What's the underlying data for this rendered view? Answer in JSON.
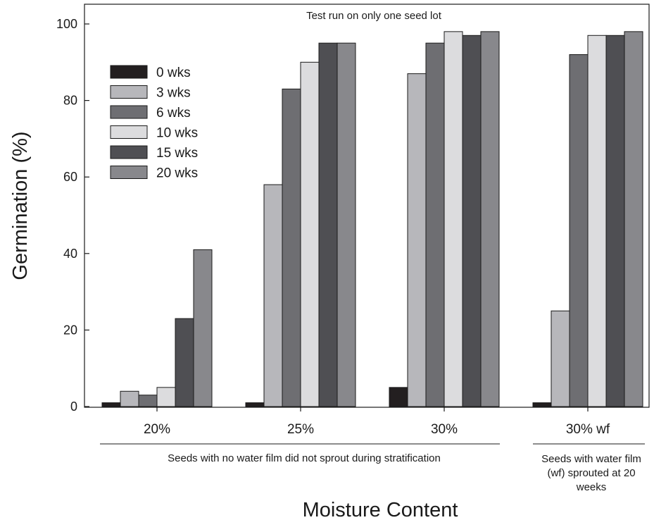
{
  "chart_data": {
    "type": "bar",
    "title": "",
    "xlabel": "Moisture Content",
    "ylabel": "Germination (%)",
    "ylim": [
      0,
      100
    ],
    "yticks": [
      0,
      20,
      40,
      60,
      80,
      100
    ],
    "grid": false,
    "legend_position": "top-left",
    "categories": [
      "20%",
      "25%",
      "30%",
      "30% wf"
    ],
    "series": [
      {
        "name": "0 wks",
        "color": "#231f20",
        "values": [
          1,
          1,
          5,
          1
        ]
      },
      {
        "name": "3 wks",
        "color": "#b7b7bb",
        "values": [
          4,
          58,
          87,
          25
        ]
      },
      {
        "name": "6 wks",
        "color": "#6e6e72",
        "values": [
          3,
          83,
          95,
          92
        ]
      },
      {
        "name": "10 wks",
        "color": "#dcdcde",
        "values": [
          5,
          90,
          98,
          97
        ]
      },
      {
        "name": "15 wks",
        "color": "#4f4f53",
        "values": [
          23,
          95,
          97,
          97
        ]
      },
      {
        "name": "20 wks",
        "color": "#88888c",
        "values": [
          41,
          95,
          98,
          98
        ]
      }
    ],
    "annotations": {
      "top": "Test run on only one seed lot",
      "group_note_1": "Seeds with no water film did not sprout during stratification",
      "group_note_2": [
        "Seeds with water film",
        "(wf) sprouted at 20",
        "weeks"
      ]
    }
  }
}
